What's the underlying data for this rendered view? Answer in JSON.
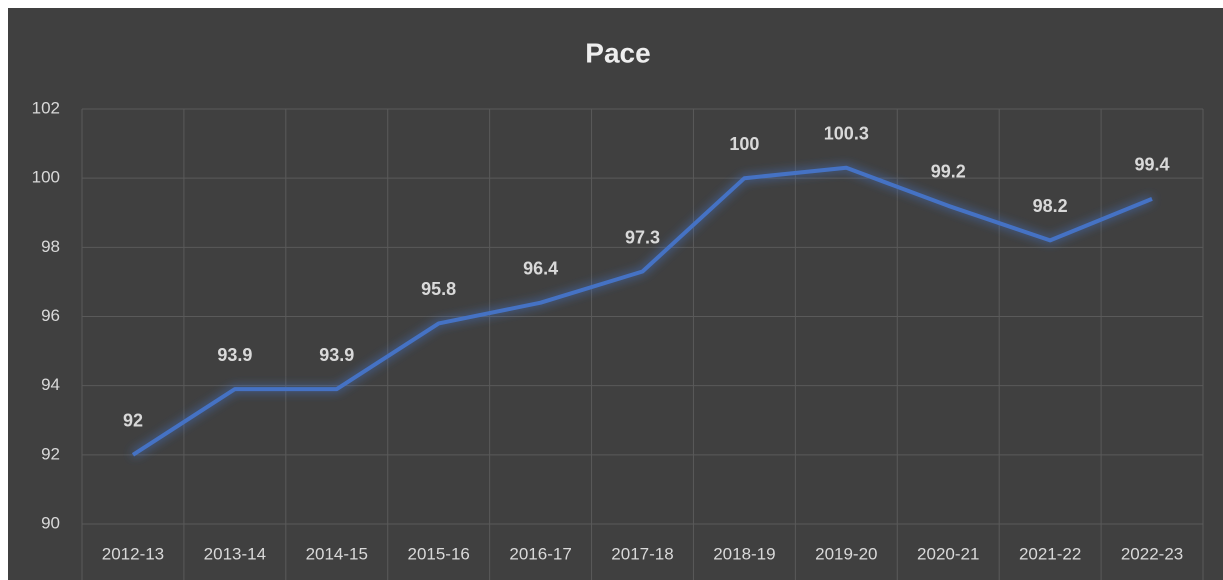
{
  "chart_data": {
    "type": "line",
    "title": "Pace",
    "categories": [
      "2012-13",
      "2013-14",
      "2014-15",
      "2015-16",
      "2016-17",
      "2017-18",
      "2018-19",
      "2019-20",
      "2020-21",
      "2021-22",
      "2022-23"
    ],
    "values": [
      92,
      93.9,
      93.9,
      95.8,
      96.4,
      97.3,
      100,
      100.3,
      99.2,
      98.2,
      99.4
    ],
    "color": "#4472c4",
    "ylim": [
      90,
      102
    ],
    "yticks": [
      90,
      92,
      94,
      96,
      98,
      100,
      102
    ],
    "grid": true,
    "data_labels": true
  }
}
